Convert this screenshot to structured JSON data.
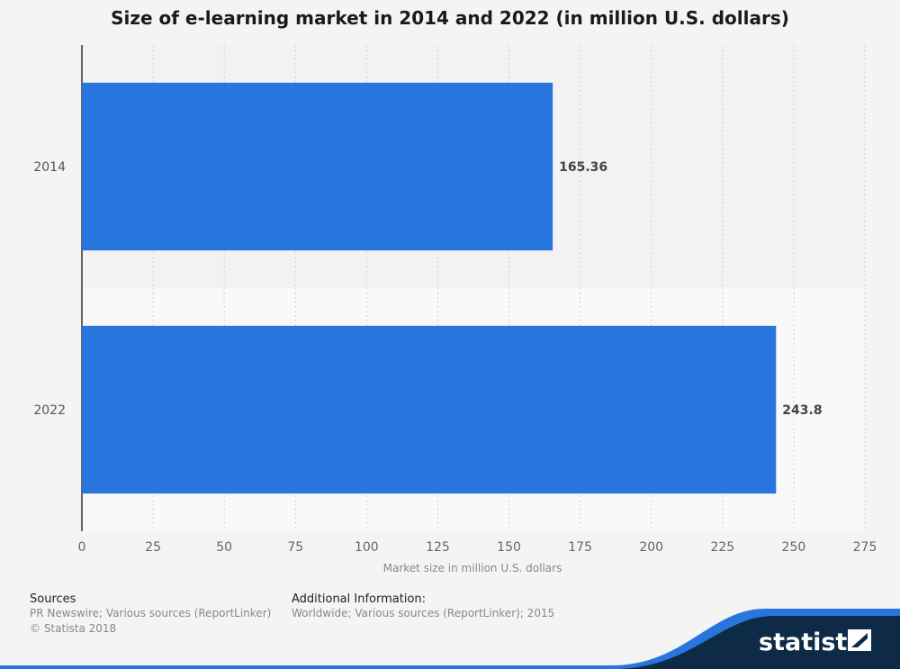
{
  "chart_data": {
    "type": "bar",
    "orientation": "horizontal",
    "title": "Size of e-learning market in 2014 and 2022 (in million U.S. dollars)",
    "categories": [
      "2014",
      "2022"
    ],
    "values": [
      165.36,
      243.8
    ],
    "value_labels": [
      "165.36",
      "243.8"
    ],
    "xlabel": "Market size in million U.S. dollars",
    "ylabel": "",
    "xlim": [
      0,
      275
    ],
    "ticks": [
      0,
      25,
      50,
      75,
      100,
      125,
      150,
      175,
      200,
      225,
      250,
      275
    ],
    "tick_labels": [
      "0",
      "25",
      "50",
      "75",
      "100",
      "125",
      "150",
      "175",
      "200",
      "225",
      "250",
      "275"
    ],
    "grid": true,
    "bar_color": "#2876dd"
  },
  "footer": {
    "sources_heading": "Sources",
    "sources_text": "PR Newswire; Various sources (ReportLinker)",
    "copyright": "© Statista 2018",
    "additional_heading": "Additional Information:",
    "additional_text": "Worldwide; Various sources (ReportLinker); 2015"
  },
  "brand": {
    "name": "statista",
    "color_dark": "#0d2a47",
    "color_accent": "#2876dd"
  }
}
